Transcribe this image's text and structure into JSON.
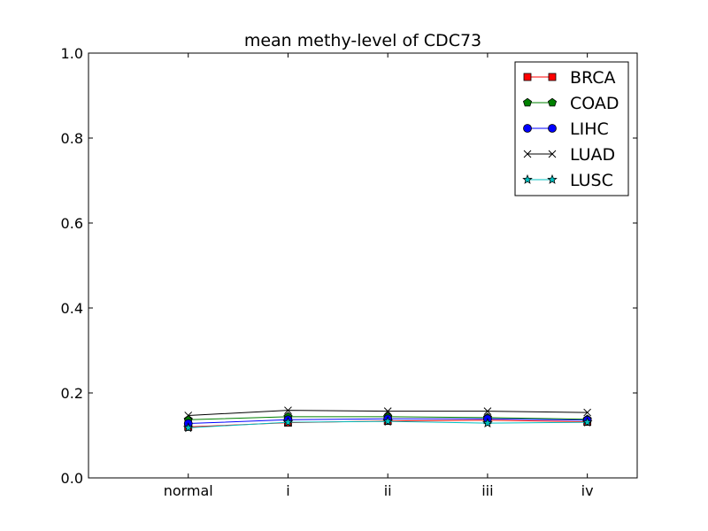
{
  "chart_data": {
    "type": "line",
    "title": "mean methy-level of CDC73",
    "xlabel": "",
    "ylabel": "",
    "categories": [
      "normal",
      "i",
      "ii",
      "iii",
      "iv"
    ],
    "y_ticks": [
      "0.0",
      "0.2",
      "0.4",
      "0.6",
      "0.8",
      "1.0"
    ],
    "ylim": [
      0,
      1
    ],
    "x_range": [
      -1,
      4.5
    ],
    "grid": false,
    "legend_placement": "top-right",
    "series": [
      {
        "name": "BRCA",
        "color": "#ff0000",
        "marker": "square",
        "values": [
          0.12,
          0.13,
          0.134,
          0.136,
          0.132
        ]
      },
      {
        "name": "COAD",
        "color": "#008000",
        "marker": "pentagon",
        "values": [
          0.137,
          0.144,
          0.144,
          0.142,
          0.138
        ]
      },
      {
        "name": "LIHC",
        "color": "#0000ff",
        "marker": "circle",
        "values": [
          0.128,
          0.137,
          0.139,
          0.139,
          0.136
        ]
      },
      {
        "name": "LUAD",
        "color": "#000000",
        "marker": "x",
        "values": [
          0.147,
          0.159,
          0.157,
          0.157,
          0.154
        ]
      },
      {
        "name": "LUSC",
        "color": "#00bfbf",
        "marker": "star",
        "values": [
          0.118,
          0.131,
          0.133,
          0.129,
          0.131
        ]
      }
    ]
  }
}
